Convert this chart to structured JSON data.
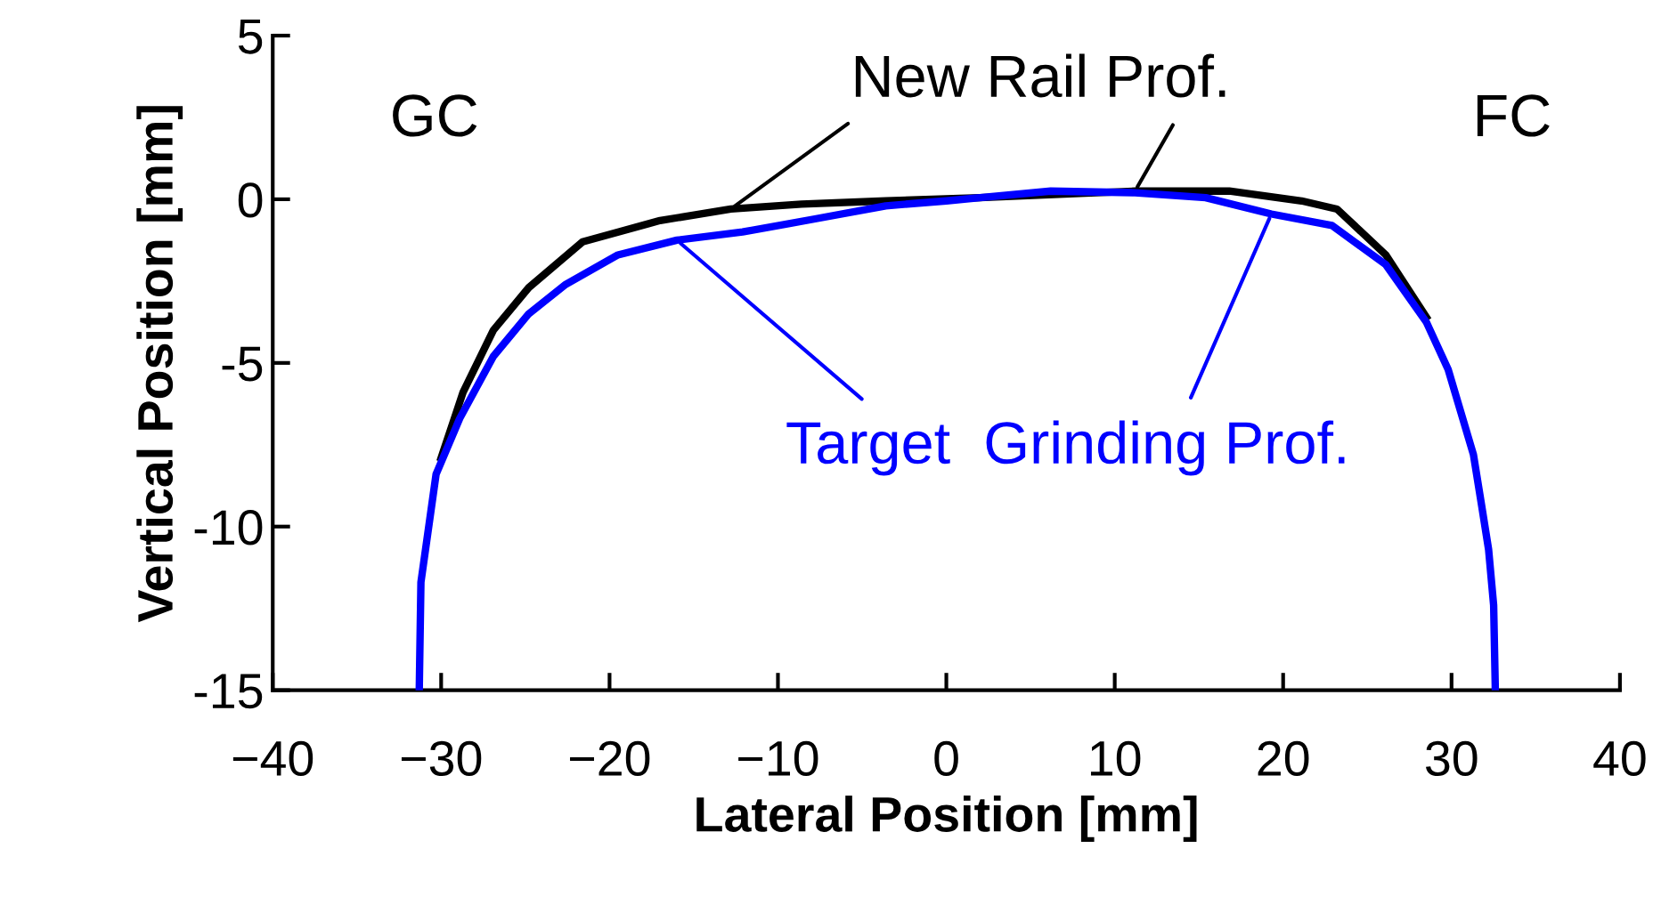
{
  "chart_data": {
    "type": "line",
    "xlabel": "Lateral Position [mm]",
    "ylabel": "Vertical Position [mm]",
    "xlim": [
      -40,
      40
    ],
    "ylim": [
      -15,
      5
    ],
    "xticks": [
      {
        "value": -40,
        "label": "−40"
      },
      {
        "value": -30,
        "label": "−30"
      },
      {
        "value": -20,
        "label": "−20"
      },
      {
        "value": -10,
        "label": "−10"
      },
      0,
      10,
      20,
      30,
      40
    ],
    "yticks": [
      {
        "value": -15,
        "label": "-15"
      },
      {
        "value": -10,
        "label": "-10"
      },
      {
        "value": -5,
        "label": "-5"
      },
      0,
      5
    ],
    "grid": false,
    "legend": false,
    "marker": "none",
    "line_style": "solid",
    "annotations": [
      "GC",
      "FC"
    ],
    "series": [
      {
        "name": "New Rail Prof.",
        "color": "#000000",
        "x": [
          -30.0,
          -28.7,
          -26.9,
          -24.8,
          -21.6,
          -17.0,
          -12.8,
          -8.6,
          -3.6,
          2.0,
          11.2,
          16.8,
          21.1,
          23.2,
          26.1,
          28.5
        ],
        "values": [
          -7.9,
          -5.9,
          -4.0,
          -2.7,
          -1.3,
          -0.65,
          -0.3,
          -0.15,
          -0.05,
          0.05,
          0.25,
          0.25,
          -0.05,
          -0.3,
          -1.7,
          -3.6
        ]
      },
      {
        "name": "Target  Grinding Prof.",
        "color": "#0000ff",
        "x": [
          -31.3,
          -31.2,
          -30.3,
          -28.9,
          -26.9,
          -24.8,
          -22.6,
          -19.5,
          -16.0,
          -12.1,
          -7.8,
          -3.6,
          0.0,
          2.0,
          6.2,
          11.2,
          15.4,
          19.3,
          22.9,
          26.1,
          28.5,
          29.8,
          31.3,
          31.8,
          32.2,
          32.5,
          32.6
        ],
        "values": [
          -15,
          -11.7,
          -8.4,
          -6.7,
          -4.8,
          -3.5,
          -2.6,
          -1.7,
          -1.25,
          -1.0,
          -0.6,
          -0.2,
          -0.05,
          0.05,
          0.25,
          0.2,
          0.05,
          -0.45,
          -0.8,
          -2.0,
          -3.75,
          -5.2,
          -7.8,
          -9.4,
          -10.7,
          -12.4,
          -15
        ]
      }
    ]
  }
}
